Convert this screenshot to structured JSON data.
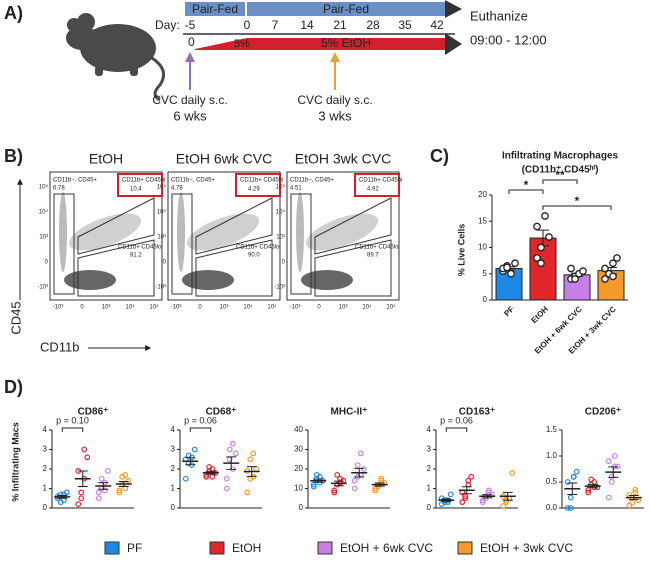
{
  "panel_labels": [
    "A)",
    "B)",
    "C)",
    "D)"
  ],
  "timeline": {
    "pair_fed": [
      "Pair-Fed",
      "Pair-Fed"
    ],
    "day_label": "Day:",
    "days": [
      -5,
      0,
      7,
      14,
      21,
      28,
      35,
      42
    ],
    "ramp_start": "0",
    "ramp_label": "5%",
    "etoh_label": "5% EtOH",
    "end_title": "Euthanize",
    "end_time": "09:00 - 12:00",
    "treatments": [
      {
        "text": "CVC daily s.c.",
        "duration": "6 wks",
        "color": "#8e6fc1"
      },
      {
        "text": "CVC daily s.c.",
        "duration": "3 wks",
        "color": "#f0a030"
      }
    ]
  },
  "flow": {
    "y_axis": "CD45",
    "x_axis": "CD11b",
    "x_ticks": [
      "-10³",
      "0",
      "10³",
      "10⁴",
      "10⁵"
    ],
    "y_ticks": [
      "10⁵",
      "10⁴",
      "10³",
      "0",
      "-10³"
    ],
    "plots": [
      {
        "title": "EtOH",
        "gates": [
          {
            "name": "CD11b−, CD45+",
            "value": "6.78"
          },
          {
            "name": "CD11b+ CD45hi",
            "value": "10.4"
          },
          {
            "name": "CD11b+ CD45lo",
            "value": "81.2"
          }
        ]
      },
      {
        "title": "EtOH 6wk CVC",
        "gates": [
          {
            "name": "CD11b−, CD45+",
            "value": "4.78"
          },
          {
            "name": "CD11b+ CD45hi",
            "value": "4.29"
          },
          {
            "name": "CD11b+ CD45lo",
            "value": "90.0"
          }
        ]
      },
      {
        "title": "EtOH 3wk CVC",
        "gates": [
          {
            "name": "CD11b−, CD45+",
            "value": "4.51"
          },
          {
            "name": "CD11b+ CD45hi",
            "value": "4.92"
          },
          {
            "name": "CD11b+ CD45lo",
            "value": "89.7"
          }
        ]
      }
    ]
  },
  "groups": [
    {
      "name": "PF",
      "color": "#1e88e5"
    },
    {
      "name": "EtOH",
      "color": "#e0252b"
    },
    {
      "name": "EtOH + 6wk CVC",
      "color": "#c77fe8"
    },
    {
      "name": "EtOH + 3wk CVC",
      "color": "#f39a2a"
    }
  ],
  "chart_data": [
    {
      "type": "bar",
      "title": [
        "Infiltrating Macrophages",
        "(CD11b⁺ CD45ʰⁱ)"
      ],
      "y_label": "% Live Cells",
      "categories": [
        "PF",
        "EtOH",
        "EtOH + 6wk CVC",
        "EtOH + 3wk CVC"
      ],
      "values": [
        6,
        11.8,
        4.8,
        5.6
      ],
      "errors": [
        0.3,
        1.5,
        0.3,
        0.6
      ],
      "points": [
        [
          5.5,
          6.5,
          5,
          7,
          6,
          6.2
        ],
        [
          8,
          10,
          16,
          12,
          14,
          7
        ],
        [
          4,
          4.5,
          5,
          5.5,
          6,
          4
        ],
        [
          4,
          5,
          7,
          8,
          6,
          5,
          4.5
        ]
      ],
      "significance": [
        "*",
        "**",
        "*"
      ],
      "ylim": [
        0,
        20
      ],
      "yticks": [
        0,
        5,
        10,
        15,
        20
      ]
    },
    {
      "type": "dot",
      "title": "CD86⁺",
      "y_label": "% Infiltrating Macs",
      "annotation": "p = 0.10",
      "ylim": [
        0,
        4
      ],
      "yticks": [
        0,
        1,
        2,
        3,
        4
      ],
      "series": [
        {
          "values": [
            0.5,
            0.7,
            0.4,
            0.8,
            0.6,
            0.3,
            0.7
          ],
          "mean": 0.57,
          "sem": 0.07
        },
        {
          "values": [
            0.2,
            0.8,
            1.5,
            2.6,
            1.9,
            0.5,
            3.0
          ],
          "mean": 1.5,
          "sem": 0.4
        },
        {
          "values": [
            0.5,
            1.0,
            1.3,
            1.9,
            0.8,
            1.5,
            0.9
          ],
          "mean": 1.13,
          "sem": 0.17
        },
        {
          "values": [
            0.9,
            1.2,
            1.7,
            1.4,
            0.8,
            1.6,
            1.0
          ],
          "mean": 1.23,
          "sem": 0.13
        }
      ]
    },
    {
      "type": "dot",
      "title": "CD68⁺",
      "annotation": "p = 0.06",
      "ylim": [
        0,
        4
      ],
      "yticks": [
        0,
        1,
        2,
        3,
        4
      ],
      "series": [
        {
          "values": [
            2.5,
            2.7,
            2.2,
            3.0,
            1.5,
            2.3,
            2.6
          ],
          "mean": 2.4,
          "sem": 0.18
        },
        {
          "values": [
            1.6,
            1.9,
            2.0,
            1.8,
            1.7,
            2.1,
            1.6
          ],
          "mean": 1.81,
          "sem": 0.07
        },
        {
          "values": [
            1.0,
            2.5,
            3.3,
            2.8,
            1.5,
            3.0,
            2.0
          ],
          "mean": 2.3,
          "sem": 0.32
        },
        {
          "values": [
            0.8,
            1.5,
            2.8,
            2.0,
            1.9,
            2.5,
            1.6
          ],
          "mean": 1.87,
          "sem": 0.25
        }
      ]
    },
    {
      "type": "dot",
      "title": "MHC-II⁺",
      "ylim": [
        0,
        40
      ],
      "yticks": [
        0,
        10,
        20,
        30,
        40
      ],
      "series": [
        {
          "values": [
            12,
            15,
            16,
            14,
            11,
            17,
            13
          ],
          "mean": 14,
          "sem": 0.8
        },
        {
          "values": [
            9,
            12,
            15,
            14,
            8,
            17,
            13
          ],
          "mean": 12.6,
          "sem": 1.2
        },
        {
          "values": [
            10,
            16,
            28,
            20,
            14,
            22,
            17
          ],
          "mean": 18.1,
          "sem": 2.2
        },
        {
          "values": [
            9,
            12,
            14,
            13,
            10,
            11,
            15
          ],
          "mean": 12,
          "sem": 0.8
        }
      ]
    },
    {
      "type": "dot",
      "title": "CD163⁺",
      "annotation": "p = 0.06",
      "ylim": [
        0,
        4
      ],
      "yticks": [
        0,
        1,
        2,
        3,
        4
      ],
      "series": [
        {
          "values": [
            0.2,
            0.4,
            0.3,
            0.7,
            0.5,
            0.3,
            0.4
          ],
          "mean": 0.4,
          "sem": 0.06
        },
        {
          "values": [
            0.3,
            0.6,
            1.2,
            1.6,
            0.8,
            0.5,
            1.4
          ],
          "mean": 0.91,
          "sem": 0.18
        },
        {
          "values": [
            0.3,
            0.6,
            0.8,
            0.7,
            0.4,
            0.5,
            0.9
          ],
          "mean": 0.6,
          "sem": 0.08
        },
        {
          "values": [
            0.1,
            0.3,
            0.5,
            1.8,
            0.6,
            0.4,
            0.5
          ],
          "mean": 0.6,
          "sem": 0.2
        }
      ]
    },
    {
      "type": "dot",
      "title": "CD206⁺",
      "ylim": [
        0,
        1.5
      ],
      "yticks": [
        {
          "value": 0,
          "label": "0.0"
        },
        0.5,
        {
          "value": 1,
          "label": "1.0"
        },
        1.5
      ],
      "series": [
        {
          "values": [
            0.0,
            0.2,
            0.6,
            0.7,
            0.5,
            0.0,
            0.6
          ],
          "mean": 0.37,
          "sem": 0.11
        },
        {
          "values": [
            0.3,
            0.45,
            0.5,
            0.4,
            0.35,
            0.55,
            0.4
          ],
          "mean": 0.42,
          "sem": 0.03
        },
        {
          "values": [
            0.2,
            0.6,
            1.0,
            0.8,
            0.9,
            0.5,
            0.8
          ],
          "mean": 0.69,
          "sem": 0.1
        },
        {
          "values": [
            0.05,
            0.2,
            0.3,
            0.15,
            0.25,
            0.1,
            0.35
          ],
          "mean": 0.2,
          "sem": 0.04
        }
      ]
    }
  ]
}
